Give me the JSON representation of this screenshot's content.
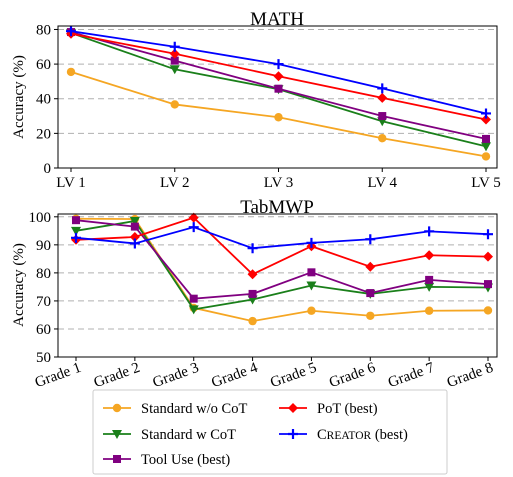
{
  "chart_data": [
    {
      "type": "line",
      "title": "MATH",
      "xlabel": "",
      "ylabel": "Accuracy (%)",
      "categories": [
        "LV 1",
        "LV 2",
        "LV 3",
        "LV 4",
        "LV 5"
      ],
      "ylim": [
        0,
        82
      ],
      "yticks": [
        0,
        20,
        40,
        60,
        80
      ],
      "grid": "horizontal dashed",
      "series": [
        {
          "name": "Standard w/o CoT",
          "color": "#F5A623",
          "marker": "circle",
          "values": [
            55.5,
            36.7,
            29.3,
            17.2,
            6.7
          ]
        },
        {
          "name": "Standard w CoT",
          "color": "#1A7F1A",
          "marker": "triangle-down",
          "values": [
            78.0,
            57.0,
            45.5,
            27.0,
            12.5
          ]
        },
        {
          "name": "Tool Use (best)",
          "color": "#800080",
          "marker": "square",
          "values": [
            78.5,
            62.0,
            45.8,
            30.0,
            16.8
          ]
        },
        {
          "name": "PoT (best)",
          "color": "#FF0000",
          "marker": "diamond",
          "values": [
            77.5,
            66.0,
            53.0,
            40.5,
            28.0
          ]
        },
        {
          "name": "CREATOR (best)",
          "color": "#0000FF",
          "marker": "plus",
          "values": [
            79.0,
            70.0,
            60.0,
            46.0,
            31.5
          ]
        }
      ]
    },
    {
      "type": "line",
      "title": "TabMWP",
      "xlabel": "",
      "ylabel": "Accuracy (%)",
      "categories": [
        "Grade 1",
        "Grade 2",
        "Grade 3",
        "Grade 4",
        "Grade 5",
        "Grade 6",
        "Grade 7",
        "Grade 8"
      ],
      "ylim": [
        50,
        101
      ],
      "yticks": [
        50,
        60,
        70,
        80,
        90,
        100
      ],
      "grid": "horizontal dashed",
      "series": [
        {
          "name": "Standard w/o CoT",
          "color": "#F5A623",
          "marker": "circle",
          "values": [
            99.3,
            99.2,
            67.5,
            62.8,
            66.5,
            64.7,
            66.5,
            66.6
          ]
        },
        {
          "name": "Standard w CoT",
          "color": "#1A7F1A",
          "marker": "triangle-down",
          "values": [
            95.0,
            98.5,
            67.0,
            70.5,
            75.5,
            72.5,
            75.0,
            74.8
          ]
        },
        {
          "name": "Tool Use (best)",
          "color": "#800080",
          "marker": "square",
          "values": [
            98.8,
            96.5,
            70.8,
            72.5,
            80.2,
            72.8,
            77.5,
            76.0
          ]
        },
        {
          "name": "PoT (best)",
          "color": "#FF0000",
          "marker": "diamond",
          "values": [
            91.8,
            92.8,
            99.7,
            79.5,
            89.5,
            82.2,
            86.3,
            85.8
          ]
        },
        {
          "name": "CREATOR (best)",
          "color": "#0000FF",
          "marker": "plus",
          "values": [
            92.5,
            90.5,
            96.3,
            88.8,
            90.7,
            92.0,
            94.8,
            93.8
          ]
        }
      ]
    }
  ],
  "legend": {
    "placement": "bottom",
    "items": [
      {
        "label": "Standard w/o CoT",
        "color": "#F5A623",
        "marker": "circle"
      },
      {
        "label": "PoT (best)",
        "color": "#FF0000",
        "marker": "diamond"
      },
      {
        "label": "Standard w CoT",
        "color": "#1A7F1A",
        "marker": "triangle-down"
      },
      {
        "label": "CREATOR (best)",
        "color": "#0000FF",
        "marker": "plus"
      },
      {
        "label": "Tool Use (best)",
        "color": "#800080",
        "marker": "square"
      }
    ]
  }
}
